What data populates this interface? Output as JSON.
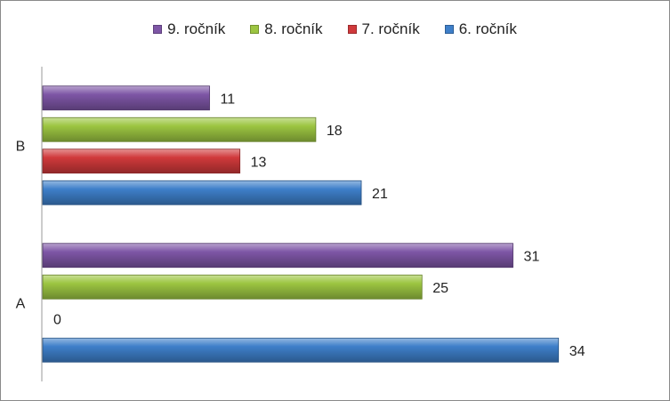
{
  "chart_data": {
    "type": "bar",
    "orientation": "horizontal",
    "categories": [
      "A",
      "B"
    ],
    "series": [
      {
        "name": "6. ročník",
        "values": [
          34,
          21
        ],
        "color": "#3E7FC9"
      },
      {
        "name": "7. ročník",
        "values": [
          0,
          13
        ],
        "color": "#D0393B"
      },
      {
        "name": "8. ročník",
        "values": [
          25,
          18
        ],
        "color": "#9CC541"
      },
      {
        "name": "9. ročník",
        "values": [
          31,
          11
        ],
        "color": "#7E56A6"
      }
    ],
    "legend_order": [
      "9. ročník",
      "8. ročník",
      "7. ročník",
      "6. ročník"
    ],
    "legend_position": "top",
    "xlim": [
      0,
      40
    ],
    "grid": false,
    "data_labels": true
  }
}
